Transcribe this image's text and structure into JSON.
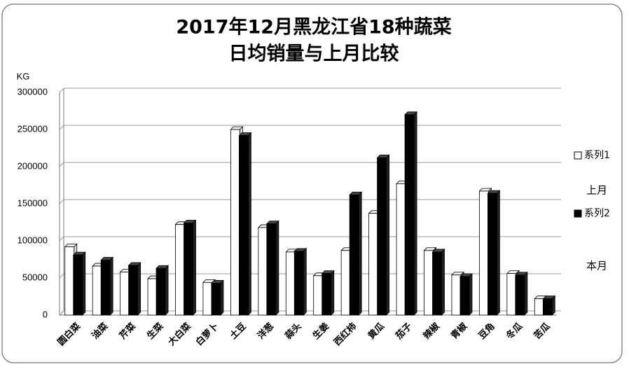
{
  "chart_data": {
    "type": "bar",
    "title": [
      "2017年12月黑龙江省18种蔬菜",
      "日均销量与上月比较"
    ],
    "y_label": "KG",
    "categories": [
      "圆白菜",
      "油菜",
      "芹菜",
      "生菜",
      "大白菜",
      "白萝卜",
      "土豆",
      "洋葱",
      "蒜头",
      "生姜",
      "西红柿",
      "黄瓜",
      "茄子",
      "辣椒",
      "青椒",
      "豆角",
      "冬瓜",
      "苦瓜"
    ],
    "series": [
      {
        "name": "系列1",
        "note": "上月",
        "color": "#ffffff",
        "values": [
          92000,
          66000,
          58000,
          49000,
          122000,
          44000,
          250000,
          118000,
          85000,
          53000,
          87000,
          137000,
          177000,
          87000,
          54000,
          167000,
          56000,
          22000
        ]
      },
      {
        "name": "系列2",
        "note": "本月",
        "color": "#000000",
        "values": [
          81000,
          74000,
          67000,
          63000,
          124000,
          43000,
          242000,
          123000,
          86000,
          56000,
          162000,
          212000,
          270000,
          85000,
          52000,
          164000,
          54000,
          22000
        ]
      }
    ],
    "ylim": [
      0,
      300000
    ],
    "yticks": [
      0,
      50000,
      100000,
      150000,
      200000,
      250000,
      300000
    ],
    "grid": true
  }
}
